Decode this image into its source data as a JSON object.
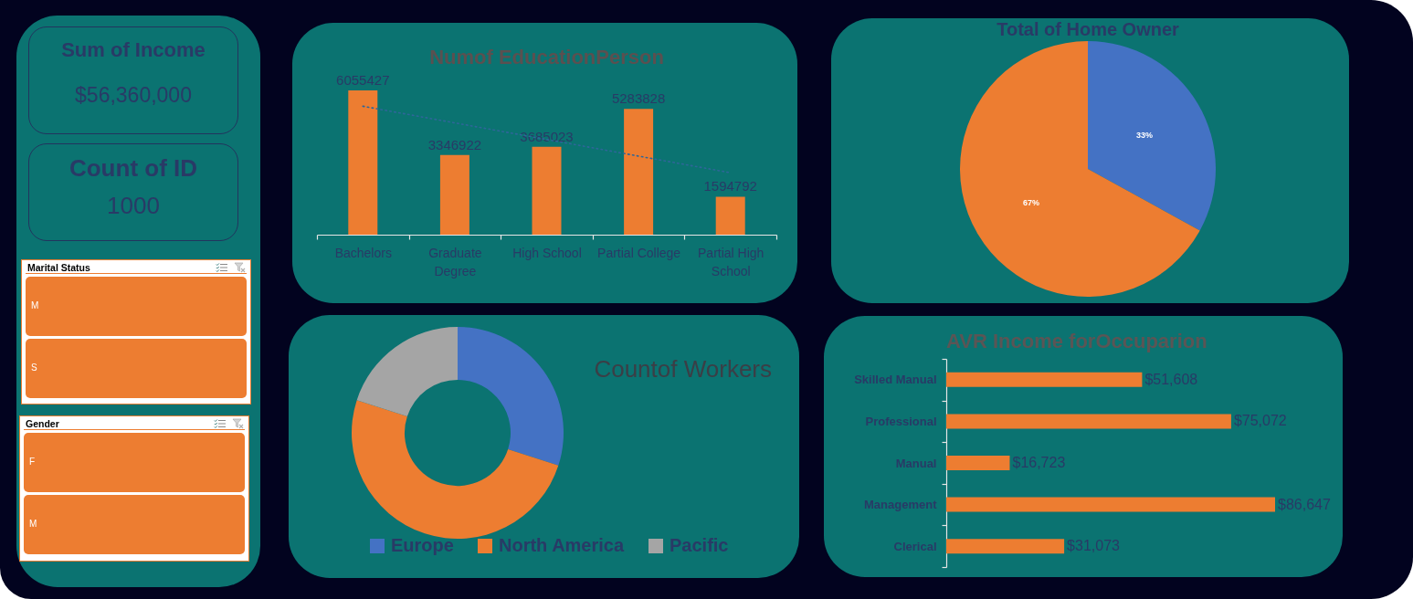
{
  "chart_data": [
    {
      "type": "other",
      "title": "Sum of Income",
      "annotations": [
        "$56,360,000"
      ]
    },
    {
      "type": "other",
      "title": "Count of ID",
      "annotations": [
        "1000"
      ]
    },
    {
      "type": "other",
      "title": "Marital Status",
      "categories": [
        "M",
        "S"
      ]
    },
    {
      "type": "other",
      "title": "Gender",
      "categories": [
        "F",
        "M"
      ]
    },
    {
      "type": "bar",
      "title": "Numof EducationPerson",
      "categories": [
        "Bachelors",
        "Graduate Degree",
        "High School",
        "Partial College",
        "Partial High School"
      ],
      "series": [
        {
          "type": "bar",
          "color": "#ed7d31",
          "values": [
            6055427,
            3346922,
            3685023,
            5283828,
            1594792
          ],
          "value_labels": [
            "6055427",
            "3346922",
            "3685023",
            "5283828",
            "1594792"
          ]
        },
        {
          "type": "line",
          "color": "#2e6699",
          "line_style": "dotted",
          "x": [
            "Bachelors",
            "Partial High School"
          ],
          "values": [
            5390000,
            2600000
          ]
        }
      ]
    },
    {
      "type": "pie",
      "title": "Total of Home Owner",
      "categories": [
        null,
        null
      ],
      "values": [
        33,
        67
      ],
      "colors": [
        "#4472c4",
        "#ed7d31"
      ],
      "value_labels": [
        "33%",
        "67%"
      ]
    },
    {
      "type": "donut",
      "title": "Countof Workers",
      "categories": [
        "Europe",
        "North America",
        "Pacific"
      ],
      "values": [
        30,
        50,
        20
      ],
      "colors": [
        "#4472c4",
        "#ed7d31",
        "#a5a5a5"
      ],
      "legend": "bottom"
    },
    {
      "type": "bar",
      "orientation": "horizontal",
      "title": "AVR Income forOccuparion",
      "categories": [
        "Skilled Manual",
        "Professional",
        "Manual",
        "Management",
        "Clerical"
      ],
      "values": [
        51608,
        75072,
        16723,
        86647,
        31073
      ],
      "color": "#ed7d31",
      "value_labels": [
        "$51,608",
        "$75,072",
        "$16,723",
        "$86,647",
        "$31,073"
      ]
    }
  ]
}
